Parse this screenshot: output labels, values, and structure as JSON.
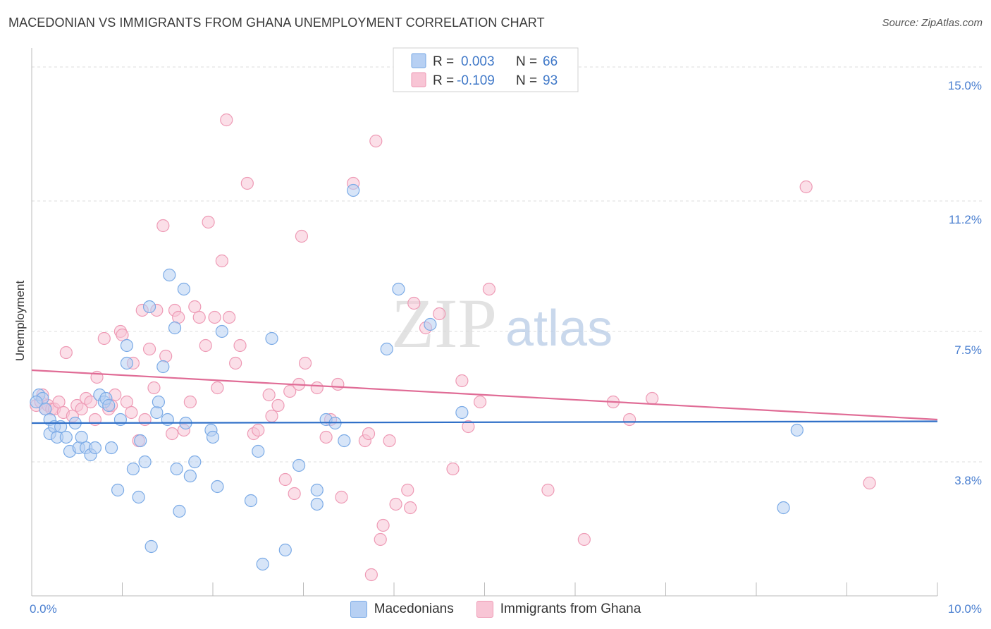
{
  "title": "MACEDONIAN VS IMMIGRANTS FROM GHANA UNEMPLOYMENT CORRELATION CHART",
  "source": "Source: ZipAtlas.com",
  "watermark": {
    "zip": "ZIP",
    "atlas": "atlas"
  },
  "colors": {
    "blue": "#7aaae6",
    "blue_fill": "#b7d0f3",
    "blue_line": "#3070c8",
    "pink": "#ee9ab5",
    "pink_fill": "#f8c5d5",
    "pink_line": "#e06c96",
    "axis_text": "#4a7fd0",
    "grid": "#dddddd"
  },
  "legend": {
    "series": [
      {
        "r_label": "R =",
        "r_value": "0.003",
        "n_label": "N =",
        "n_value": "66"
      },
      {
        "r_label": "R =",
        "r_value": "-0.109",
        "n_label": "N =",
        "n_value": "93"
      }
    ]
  },
  "bottom_legend": [
    "Macedonians",
    "Immigrants from Ghana"
  ],
  "chart_data": {
    "type": "scatter",
    "title": "MACEDONIAN VS IMMIGRANTS FROM GHANA UNEMPLOYMENT CORRELATION CHART",
    "xlabel": "",
    "ylabel": "Unemployment",
    "xlim": [
      0.0,
      10.0
    ],
    "ylim": [
      0.0,
      15.5
    ],
    "x_tick_labels": [
      "0.0%",
      "10.0%"
    ],
    "y_ticks": [
      3.8,
      7.5,
      11.2,
      15.0
    ],
    "y_tick_labels": [
      "3.8%",
      "7.5%",
      "11.2%",
      "15.0%"
    ],
    "series": [
      {
        "name": "Macedonians",
        "trend": {
          "y_start": 4.9,
          "y_end": 4.95
        },
        "points": [
          [
            0.08,
            5.7
          ],
          [
            0.12,
            5.6
          ],
          [
            0.15,
            5.3
          ],
          [
            0.2,
            4.6
          ],
          [
            0.2,
            5.0
          ],
          [
            0.25,
            4.8
          ],
          [
            0.28,
            4.5
          ],
          [
            0.32,
            4.8
          ],
          [
            0.38,
            4.5
          ],
          [
            0.42,
            4.1
          ],
          [
            0.48,
            4.9
          ],
          [
            0.52,
            4.2
          ],
          [
            0.55,
            4.5
          ],
          [
            0.6,
            4.2
          ],
          [
            0.65,
            4.0
          ],
          [
            0.7,
            4.2
          ],
          [
            0.75,
            5.7
          ],
          [
            0.8,
            5.5
          ],
          [
            0.82,
            5.6
          ],
          [
            0.85,
            5.4
          ],
          [
            0.88,
            4.2
          ],
          [
            0.95,
            3.0
          ],
          [
            0.98,
            5.0
          ],
          [
            1.05,
            7.1
          ],
          [
            1.05,
            6.6
          ],
          [
            1.12,
            3.6
          ],
          [
            1.18,
            2.8
          ],
          [
            1.2,
            4.4
          ],
          [
            1.25,
            3.8
          ],
          [
            1.3,
            8.2
          ],
          [
            1.32,
            1.4
          ],
          [
            1.38,
            5.2
          ],
          [
            1.4,
            5.5
          ],
          [
            1.45,
            6.5
          ],
          [
            1.5,
            5.0
          ],
          [
            1.52,
            9.1
          ],
          [
            1.58,
            7.6
          ],
          [
            1.6,
            3.6
          ],
          [
            1.63,
            2.4
          ],
          [
            1.68,
            8.7
          ],
          [
            1.7,
            4.9
          ],
          [
            1.75,
            3.4
          ],
          [
            1.8,
            3.8
          ],
          [
            1.98,
            4.7
          ],
          [
            2.0,
            4.5
          ],
          [
            2.05,
            3.1
          ],
          [
            2.1,
            7.5
          ],
          [
            2.42,
            2.7
          ],
          [
            2.5,
            4.1
          ],
          [
            2.55,
            0.9
          ],
          [
            2.65,
            7.3
          ],
          [
            2.8,
            1.3
          ],
          [
            2.95,
            3.7
          ],
          [
            3.15,
            3.0
          ],
          [
            3.15,
            2.6
          ],
          [
            3.25,
            5.0
          ],
          [
            3.35,
            4.9
          ],
          [
            3.45,
            4.4
          ],
          [
            3.55,
            11.5
          ],
          [
            3.92,
            7.0
          ],
          [
            4.05,
            8.7
          ],
          [
            4.4,
            7.7
          ],
          [
            4.75,
            5.2
          ],
          [
            8.3,
            2.5
          ],
          [
            8.45,
            4.7
          ],
          [
            0.05,
            5.5
          ]
        ]
      },
      {
        "name": "Immigrants from Ghana",
        "trend": {
          "y_start": 6.4,
          "y_end": 5.0
        },
        "points": [
          [
            0.05,
            5.4
          ],
          [
            0.1,
            5.5
          ],
          [
            0.12,
            5.7
          ],
          [
            0.15,
            5.3
          ],
          [
            0.18,
            5.4
          ],
          [
            0.22,
            5.3
          ],
          [
            0.25,
            5.3
          ],
          [
            0.3,
            5.5
          ],
          [
            0.35,
            5.2
          ],
          [
            0.38,
            6.9
          ],
          [
            0.45,
            5.1
          ],
          [
            0.5,
            5.4
          ],
          [
            0.55,
            5.3
          ],
          [
            0.6,
            5.6
          ],
          [
            0.65,
            5.5
          ],
          [
            0.7,
            5.0
          ],
          [
            0.72,
            6.2
          ],
          [
            0.8,
            7.3
          ],
          [
            0.85,
            5.3
          ],
          [
            0.88,
            5.4
          ],
          [
            0.92,
            5.7
          ],
          [
            0.98,
            7.5
          ],
          [
            1.0,
            7.4
          ],
          [
            1.05,
            5.5
          ],
          [
            1.1,
            5.2
          ],
          [
            1.12,
            6.6
          ],
          [
            1.18,
            4.4
          ],
          [
            1.22,
            8.1
          ],
          [
            1.25,
            5.0
          ],
          [
            1.3,
            7.0
          ],
          [
            1.35,
            5.9
          ],
          [
            1.38,
            8.1
          ],
          [
            1.45,
            10.5
          ],
          [
            1.48,
            6.8
          ],
          [
            1.55,
            4.6
          ],
          [
            1.58,
            8.1
          ],
          [
            1.62,
            7.9
          ],
          [
            1.68,
            4.7
          ],
          [
            1.75,
            5.5
          ],
          [
            1.8,
            8.2
          ],
          [
            1.85,
            7.9
          ],
          [
            1.92,
            7.1
          ],
          [
            1.95,
            10.6
          ],
          [
            2.02,
            7.9
          ],
          [
            2.05,
            5.9
          ],
          [
            2.1,
            9.5
          ],
          [
            2.15,
            13.5
          ],
          [
            2.18,
            7.9
          ],
          [
            2.25,
            6.6
          ],
          [
            2.3,
            7.1
          ],
          [
            2.38,
            11.7
          ],
          [
            2.45,
            4.6
          ],
          [
            2.5,
            4.7
          ],
          [
            2.62,
            5.7
          ],
          [
            2.65,
            5.1
          ],
          [
            2.72,
            5.4
          ],
          [
            2.8,
            3.3
          ],
          [
            2.85,
            5.8
          ],
          [
            2.9,
            2.9
          ],
          [
            2.95,
            6.0
          ],
          [
            2.98,
            10.2
          ],
          [
            3.02,
            6.6
          ],
          [
            3.15,
            5.9
          ],
          [
            3.25,
            4.5
          ],
          [
            3.3,
            5.0
          ],
          [
            3.38,
            6.0
          ],
          [
            3.42,
            2.8
          ],
          [
            3.55,
            11.7
          ],
          [
            3.68,
            4.4
          ],
          [
            3.72,
            4.6
          ],
          [
            3.8,
            12.9
          ],
          [
            3.85,
            1.6
          ],
          [
            3.88,
            2.0
          ],
          [
            3.95,
            4.4
          ],
          [
            4.02,
            2.6
          ],
          [
            4.15,
            3.0
          ],
          [
            4.18,
            2.5
          ],
          [
            4.22,
            8.3
          ],
          [
            4.35,
            7.6
          ],
          [
            4.5,
            8.0
          ],
          [
            4.65,
            3.6
          ],
          [
            4.75,
            6.1
          ],
          [
            4.82,
            4.8
          ],
          [
            4.95,
            5.5
          ],
          [
            5.05,
            8.7
          ],
          [
            5.7,
            3.0
          ],
          [
            6.1,
            1.6
          ],
          [
            6.42,
            5.5
          ],
          [
            6.6,
            5.0
          ],
          [
            6.85,
            5.6
          ],
          [
            8.55,
            11.6
          ],
          [
            9.25,
            3.2
          ],
          [
            3.75,
            0.6
          ]
        ]
      }
    ]
  }
}
